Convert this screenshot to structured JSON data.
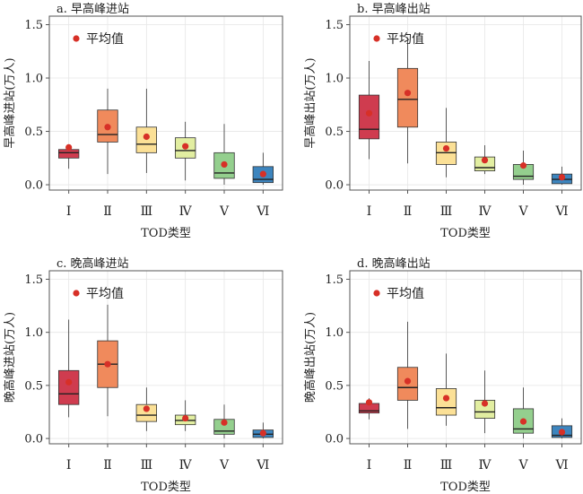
{
  "chart_data": [
    {
      "type": "box",
      "title": "a. 早高峰进站",
      "ylabel": "早高峰进站(万人)",
      "xlabel": "TOD类型",
      "categories": [
        "Ⅰ",
        "Ⅱ",
        "Ⅲ",
        "Ⅳ",
        "Ⅴ",
        "Ⅵ"
      ],
      "ylim": [
        -0.05,
        1.58
      ],
      "yticks": [
        "0.0",
        "0.5",
        "1.0",
        "1.5"
      ],
      "legend": "平均值",
      "boxes": [
        {
          "min": 0.15,
          "q1": 0.25,
          "median": 0.3,
          "q3": 0.33,
          "max": 0.37,
          "mean": 0.35
        },
        {
          "min": 0.1,
          "q1": 0.4,
          "median": 0.47,
          "q3": 0.7,
          "max": 0.9,
          "mean": 0.54
        },
        {
          "min": 0.11,
          "q1": 0.3,
          "median": 0.38,
          "q3": 0.54,
          "max": 0.9,
          "mean": 0.45
        },
        {
          "min": 0.04,
          "q1": 0.25,
          "median": 0.32,
          "q3": 0.44,
          "max": 0.59,
          "mean": 0.36
        },
        {
          "min": 0.0,
          "q1": 0.06,
          "median": 0.11,
          "q3": 0.3,
          "max": 0.57,
          "mean": 0.19
        },
        {
          "min": 0.0,
          "q1": 0.02,
          "median": 0.05,
          "q3": 0.17,
          "max": 0.3,
          "mean": 0.1
        }
      ]
    },
    {
      "type": "box",
      "title": "b. 早高峰出站",
      "ylabel": "早高峰出站(万人)",
      "xlabel": "TOD类型",
      "categories": [
        "Ⅰ",
        "Ⅱ",
        "Ⅲ",
        "Ⅳ",
        "Ⅴ",
        "Ⅵ"
      ],
      "ylim": [
        -0.05,
        1.58
      ],
      "yticks": [
        "0.0",
        "0.5",
        "1.0",
        "1.5"
      ],
      "legend": "平均值",
      "boxes": [
        {
          "min": 0.24,
          "q1": 0.43,
          "median": 0.52,
          "q3": 0.84,
          "max": 1.16,
          "mean": 0.67
        },
        {
          "min": 0.2,
          "q1": 0.54,
          "median": 0.8,
          "q3": 1.09,
          "max": 1.38,
          "mean": 0.86
        },
        {
          "min": 0.07,
          "q1": 0.19,
          "median": 0.3,
          "q3": 0.4,
          "max": 0.72,
          "mean": 0.34
        },
        {
          "min": 0.1,
          "q1": 0.13,
          "median": 0.16,
          "q3": 0.26,
          "max": 0.37,
          "mean": 0.23
        },
        {
          "min": 0.0,
          "q1": 0.05,
          "median": 0.08,
          "q3": 0.19,
          "max": 0.32,
          "mean": 0.18
        },
        {
          "min": 0.0,
          "q1": 0.01,
          "median": 0.05,
          "q3": 0.1,
          "max": 0.17,
          "mean": 0.07
        }
      ]
    },
    {
      "type": "box",
      "title": "c. 晚高峰进站",
      "ylabel": "晚高峰进站(万人)",
      "xlabel": "TOD类型",
      "categories": [
        "Ⅰ",
        "Ⅱ",
        "Ⅲ",
        "Ⅳ",
        "Ⅴ",
        "Ⅵ"
      ],
      "ylim": [
        -0.05,
        1.58
      ],
      "yticks": [
        "0.0",
        "0.5",
        "1.0",
        "1.5"
      ],
      "legend": "平均值",
      "boxes": [
        {
          "min": 0.2,
          "q1": 0.32,
          "median": 0.42,
          "q3": 0.64,
          "max": 1.12,
          "mean": 0.53
        },
        {
          "min": 0.21,
          "q1": 0.48,
          "median": 0.7,
          "q3": 0.92,
          "max": 1.26,
          "mean": 0.7
        },
        {
          "min": 0.07,
          "q1": 0.16,
          "median": 0.22,
          "q3": 0.32,
          "max": 0.48,
          "mean": 0.28
        },
        {
          "min": 0.07,
          "q1": 0.13,
          "median": 0.17,
          "q3": 0.22,
          "max": 0.36,
          "mean": 0.19
        },
        {
          "min": 0.0,
          "q1": 0.04,
          "median": 0.07,
          "q3": 0.18,
          "max": 0.32,
          "mean": 0.15
        },
        {
          "min": 0.0,
          "q1": 0.01,
          "median": 0.04,
          "q3": 0.08,
          "max": 0.15,
          "mean": 0.05
        }
      ]
    },
    {
      "type": "box",
      "title": "d. 晚高峰出站",
      "ylabel": "晚高峰出站(万人)",
      "xlabel": "TOD类型",
      "categories": [
        "Ⅰ",
        "Ⅱ",
        "Ⅲ",
        "Ⅳ",
        "Ⅴ",
        "Ⅵ"
      ],
      "ylim": [
        -0.05,
        1.58
      ],
      "yticks": [
        "0.0",
        "0.5",
        "1.0",
        "1.5"
      ],
      "legend": "平均值",
      "boxes": [
        {
          "min": 0.18,
          "q1": 0.24,
          "median": 0.26,
          "q3": 0.33,
          "max": 0.38,
          "mean": 0.34
        },
        {
          "min": 0.09,
          "q1": 0.36,
          "median": 0.48,
          "q3": 0.67,
          "max": 1.1,
          "mean": 0.54
        },
        {
          "min": 0.12,
          "q1": 0.22,
          "median": 0.29,
          "q3": 0.47,
          "max": 0.8,
          "mean": 0.38
        },
        {
          "min": 0.05,
          "q1": 0.19,
          "median": 0.25,
          "q3": 0.36,
          "max": 0.64,
          "mean": 0.33
        },
        {
          "min": 0.0,
          "q1": 0.05,
          "median": 0.09,
          "q3": 0.28,
          "max": 0.48,
          "mean": 0.16
        },
        {
          "min": 0.0,
          "q1": 0.01,
          "median": 0.03,
          "q3": 0.12,
          "max": 0.19,
          "mean": 0.06
        }
      ]
    }
  ],
  "colors": {
    "boxes": [
      "#cf3c4f",
      "#f08a5c",
      "#fbe096",
      "#e2eea1",
      "#94cf8e",
      "#3d85be"
    ],
    "mean": "#d73027",
    "grid": "#e6e6e6",
    "frame": "#555555"
  }
}
